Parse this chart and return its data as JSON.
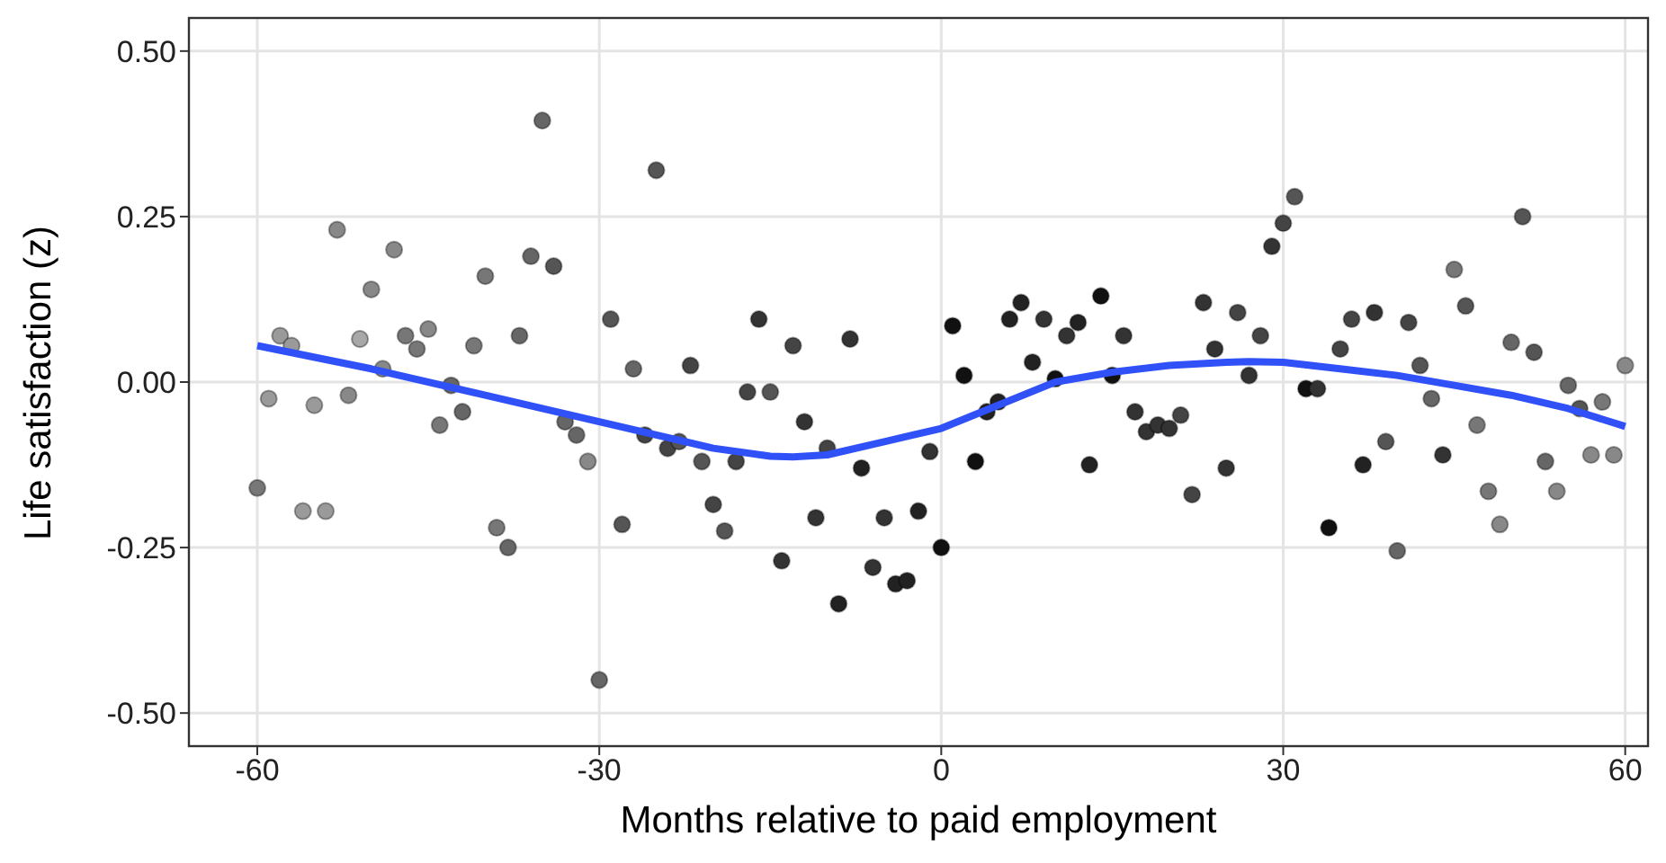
{
  "chart_data": {
    "type": "scatter",
    "xlabel": "Months relative to paid employment",
    "ylabel": "Life satisfaction (z)",
    "xlim": [
      -66,
      62
    ],
    "xticks": [
      -60,
      -30,
      0,
      30,
      60
    ],
    "ylim": [
      -0.55,
      0.55
    ],
    "yticks": [
      {
        "value": -0.5,
        "label": "-0.50"
      },
      {
        "value": -0.25,
        "label": "-0.25"
      },
      {
        "value": 0,
        "label": "0.00"
      },
      {
        "value": 0.25,
        "label": "0.25"
      },
      {
        "value": 0.5,
        "label": "0.50"
      }
    ],
    "grid": true,
    "series": [
      {
        "marker": "circle",
        "color": "#333333",
        "x": [
          -60,
          -59,
          -58,
          -57,
          -56,
          -55,
          -54,
          -53,
          -52,
          -51,
          -50,
          -49,
          -48,
          -47,
          -46,
          -45,
          -44,
          -43,
          -42,
          -41,
          -40,
          -39,
          -38,
          -37,
          -36,
          -35,
          -34,
          -33,
          -32,
          -31,
          -30,
          -29,
          -28,
          -27,
          -26,
          -25,
          -24,
          -23,
          -22,
          -21,
          -20,
          -19,
          -18,
          -17,
          -16,
          -15,
          -14,
          -13,
          -12,
          -11,
          -10,
          -9,
          -8,
          -7,
          -6,
          -5,
          -4,
          -3,
          -2,
          -1,
          0,
          1,
          2,
          3,
          4,
          5,
          6,
          7,
          8,
          9,
          10,
          11,
          12,
          13,
          14,
          15,
          16,
          17,
          18,
          19,
          20,
          21,
          22,
          23,
          24,
          25,
          26,
          27,
          28,
          29,
          30,
          31,
          32,
          33,
          34,
          35,
          36,
          37,
          38,
          39,
          40,
          41,
          42,
          43,
          44,
          45,
          46,
          47,
          48,
          49,
          50,
          51,
          52,
          53,
          54,
          55,
          56,
          57,
          58,
          59,
          60
        ],
        "values": [
          -0.16,
          -0.025,
          0.07,
          0.055,
          -0.195,
          -0.035,
          -0.195,
          0.23,
          -0.02,
          0.065,
          0.14,
          0.02,
          0.2,
          0.07,
          0.05,
          0.08,
          -0.065,
          -0.005,
          -0.045,
          0.055,
          0.16,
          -0.22,
          -0.25,
          0.07,
          0.19,
          0.395,
          0.175,
          -0.06,
          -0.08,
          -0.12,
          -0.45,
          0.095,
          -0.215,
          0.02,
          -0.08,
          0.32,
          -0.1,
          -0.09,
          0.025,
          -0.12,
          -0.185,
          -0.225,
          -0.12,
          -0.015,
          0.095,
          -0.015,
          -0.27,
          0.055,
          -0.06,
          -0.205,
          -0.1,
          -0.335,
          0.065,
          -0.13,
          -0.28,
          -0.205,
          -0.305,
          -0.3,
          -0.195,
          -0.105,
          -0.25,
          0.085,
          0.01,
          -0.12,
          -0.045,
          -0.03,
          0.095,
          0.12,
          0.03,
          0.095,
          0.005,
          0.07,
          0.09,
          -0.125,
          0.13,
          0.01,
          0.07,
          -0.045,
          -0.075,
          -0.065,
          -0.07,
          -0.05,
          -0.17,
          0.12,
          0.05,
          -0.13,
          0.105,
          0.01,
          0.07,
          0.205,
          0.24,
          0.28,
          -0.01,
          -0.01,
          -0.22,
          0.05,
          0.095,
          -0.125,
          0.105,
          -0.09,
          -0.255,
          0.09,
          0.025,
          -0.025,
          -0.11,
          0.17,
          0.115,
          -0.065,
          -0.165,
          -0.215,
          0.06,
          0.25,
          0.045,
          -0.12,
          -0.165,
          -0.005,
          -0.04,
          -0.11,
          -0.03,
          -0.11,
          0.025
        ],
        "colors": [
          "#777777",
          "#9a9a9a",
          "#9a9a9a",
          "#9a9a9a",
          "#9a9a9a",
          "#9a9a9a",
          "#9a9a9a",
          "#888888",
          "#888888",
          "#a8a8a8",
          "#888888",
          "#888888",
          "#888888",
          "#777777",
          "#777777",
          "#888888",
          "#777777",
          "#666666",
          "#666666",
          "#777777",
          "#777777",
          "#777777",
          "#666666",
          "#666666",
          "#666666",
          "#666666",
          "#555555",
          "#666666",
          "#666666",
          "#888888",
          "#666666",
          "#555555",
          "#555555",
          "#666666",
          "#444444",
          "#555555",
          "#444444",
          "#555555",
          "#444444",
          "#555555",
          "#444444",
          "#555555",
          "#444444",
          "#444444",
          "#333333",
          "#555555",
          "#333333",
          "#444444",
          "#333333",
          "#333333",
          "#444444",
          "#222222",
          "#333333",
          "#222222",
          "#333333",
          "#333333",
          "#222222",
          "#222222",
          "#222222",
          "#333333",
          "#111111",
          "#111111",
          "#111111",
          "#111111",
          "#222222",
          "#222222",
          "#222222",
          "#222222",
          "#222222",
          "#333333",
          "#111111",
          "#333333",
          "#222222",
          "#222222",
          "#111111",
          "#111111",
          "#333333",
          "#333333",
          "#333333",
          "#333333",
          "#333333",
          "#444444",
          "#444444",
          "#333333",
          "#333333",
          "#333333",
          "#444444",
          "#333333",
          "#444444",
          "#333333",
          "#444444",
          "#555555",
          "#111111",
          "#333333",
          "#111111",
          "#444444",
          "#444444",
          "#222222",
          "#333333",
          "#555555",
          "#666666",
          "#444444",
          "#555555",
          "#666666",
          "#333333",
          "#777777",
          "#555555",
          "#777777",
          "#777777",
          "#888888",
          "#666666",
          "#555555",
          "#555555",
          "#666666",
          "#888888",
          "#666666",
          "#555555",
          "#888888",
          "#777777",
          "#888888",
          "#888888"
        ]
      },
      {
        "type": "line",
        "marker": "none",
        "color": "#3050f8",
        "x": [
          -60,
          -50,
          -40,
          -30,
          -20,
          -15,
          -13,
          -10,
          -5,
          0,
          5,
          10,
          15,
          20,
          25,
          27,
          30,
          35,
          40,
          45,
          50,
          55,
          60
        ],
        "values": [
          0.055,
          0.02,
          -0.02,
          -0.06,
          -0.1,
          -0.112,
          -0.113,
          -0.11,
          -0.09,
          -0.07,
          -0.035,
          0.0,
          0.015,
          0.025,
          0.03,
          0.031,
          0.03,
          0.02,
          0.01,
          -0.005,
          -0.02,
          -0.04,
          -0.067
        ]
      }
    ]
  }
}
